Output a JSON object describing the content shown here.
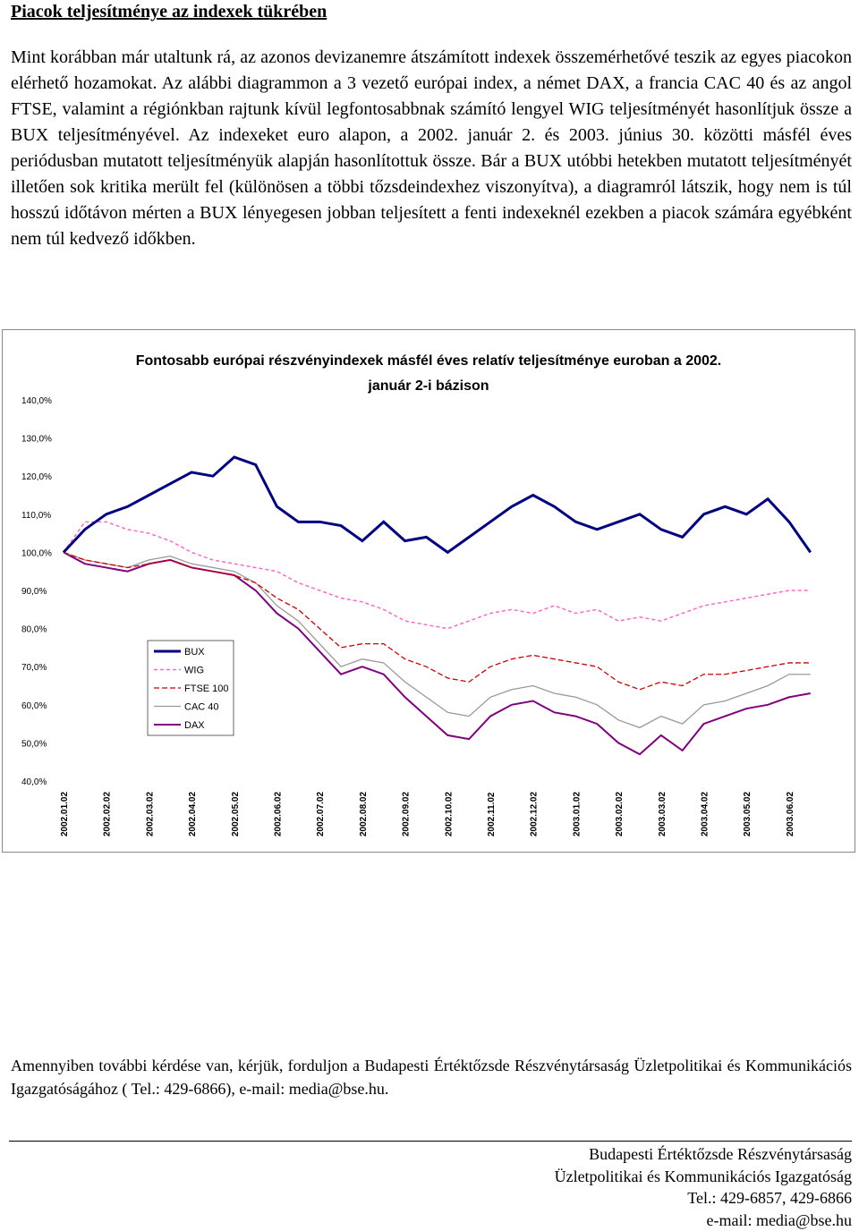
{
  "header": {
    "title": "Piacok teljesítménye az indexek tükrében"
  },
  "paragraph": "Mint korábban már utaltunk rá, az azonos devizanemre átszámított indexek összemérhetővé teszik az egyes piacokon elérhető hozamokat. Az alábbi diagrammon a 3 vezető európai index, a német DAX, a francia CAC 40 és az angol FTSE, valamint a régiónkban rajtunk kívül legfontosabbnak számító lengyel WIG teljesítményét hasonlítjuk össze a BUX teljesítményével. Az indexeket euro alapon, a 2002. január 2. és 2003. június 30. közötti másfél éves periódusban mutatott teljesítményük alapján hasonlítottuk össze. Bár a BUX utóbbi hetekben mutatott teljesítményét illetően sok kritika merült fel (különösen a többi tőzsdeindexhez viszonyítva), a diagramról látszik, hogy nem is túl hosszú időtávon mérten a BUX lényegesen jobban teljesített a fenti indexeknél ezekben a piacok számára egyébként nem túl kedvező időkben.",
  "chart_data": {
    "type": "line",
    "title": "Fontosabb európai részvényindexek másfél éves  relatív teljesítménye euroban a 2002.",
    "subtitle": "január 2-i bázison",
    "categories": [
      "2002.01.02",
      null,
      "2002.02.02",
      null,
      "2002.03.02",
      null,
      "2002.04.02",
      null,
      "2002.05.02",
      null,
      "2002.06.02",
      null,
      "2002.07.02",
      null,
      "2002.08.02",
      null,
      "2002.09.02",
      null,
      "2002.10.02",
      null,
      "2002.11.02",
      null,
      "2002.12.02",
      null,
      "2003.01.02",
      null,
      "2003.02.02",
      null,
      "2003.03.02",
      null,
      "2003.04.02",
      null,
      "2003.05.02",
      null,
      "2003.06.02",
      null
    ],
    "series": [
      {
        "name": "BUX",
        "color": "#000080",
        "values": [
          100,
          106,
          110,
          112,
          115,
          118,
          121,
          120,
          125,
          123,
          112,
          108,
          108,
          107,
          103,
          108,
          103,
          104,
          100,
          104,
          108,
          112,
          115,
          112,
          108,
          106,
          108,
          110,
          106,
          104,
          110,
          112,
          110,
          114,
          108,
          100
        ]
      },
      {
        "name": "WIG",
        "color": "#ff66cc",
        "values": [
          100,
          108,
          108,
          106,
          105,
          103,
          100,
          98,
          97,
          96,
          95,
          92,
          90,
          88,
          87,
          85,
          82,
          81,
          80,
          82,
          84,
          85,
          84,
          86,
          84,
          85,
          82,
          83,
          82,
          84,
          86,
          87,
          88,
          89,
          90,
          90
        ]
      },
      {
        "name": "FTSE 100",
        "color": "#cc0000",
        "values": [
          100,
          98,
          97,
          96,
          97,
          98,
          96,
          95,
          94,
          92,
          88,
          85,
          80,
          75,
          76,
          76,
          72,
          70,
          67,
          66,
          70,
          72,
          73,
          72,
          71,
          70,
          66,
          64,
          66,
          65,
          68,
          68,
          69,
          70,
          71,
          71
        ]
      },
      {
        "name": "CAC 40",
        "color": "#999999",
        "values": [
          100,
          98,
          97,
          96,
          98,
          99,
          97,
          96,
          95,
          92,
          86,
          82,
          76,
          70,
          72,
          71,
          66,
          62,
          58,
          57,
          62,
          64,
          65,
          63,
          62,
          60,
          56,
          54,
          57,
          55,
          60,
          61,
          63,
          65,
          68,
          68
        ]
      },
      {
        "name": "DAX",
        "color": "#800080",
        "values": [
          100,
          97,
          96,
          95,
          97,
          98,
          96,
          95,
          94,
          90,
          84,
          80,
          74,
          68,
          70,
          68,
          62,
          57,
          52,
          51,
          57,
          60,
          61,
          58,
          57,
          55,
          50,
          47,
          52,
          48,
          55,
          57,
          59,
          60,
          62,
          63
        ]
      }
    ],
    "ylim": [
      40,
      140
    ],
    "yticks": [
      {
        "value": 40,
        "label": "40,0%"
      },
      {
        "value": 50,
        "label": "50,0%"
      },
      {
        "value": 60,
        "label": "60,0%"
      },
      {
        "value": 70,
        "label": "70,0%"
      },
      {
        "value": 80,
        "label": "80,0%"
      },
      {
        "value": 90,
        "label": "90,0%"
      },
      {
        "value": 100,
        "label": "100,0%"
      },
      {
        "value": 110,
        "label": "110,0%"
      },
      {
        "value": 120,
        "label": "120,0%"
      },
      {
        "value": 130,
        "label": "130,0%"
      },
      {
        "value": 140,
        "label": "140,0%"
      }
    ],
    "grid": false
  },
  "contact": "Amennyiben további kérdése van, kérjük, forduljon a Budapesti Értéktőzsde Részvénytársaság Üzletpolitikai és Kommunikációs Igazgatóságához ( Tel.: 429-6866), e-mail: media@bse.hu.",
  "footer": {
    "lines": [
      "Budapesti Értéktőzsde Részvénytársaság",
      "Üzletpolitikai és Kommunikációs Igazgatóság",
      "Tel.: 429-6857, 429-6866",
      "e-mail: media@bse.hu"
    ]
  }
}
